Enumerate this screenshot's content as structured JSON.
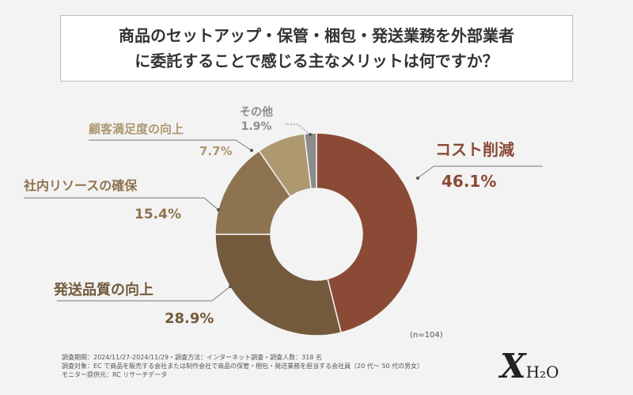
{
  "title": {
    "line1": "商品のセットアップ・保管・梱包・発送業務を外部業者",
    "line2": "に委託することで感じる主なメリットは何ですか？"
  },
  "note": "(n=104)",
  "footer": {
    "line1": "調査期間：2024/11/27-2024/11/29・調査方法：インターネット調査・調査人数：318 名",
    "line2": "調査対象：EC で商品を販売する会社または制作会社で商品の保管・梱包・発送業務を担当する会社員（20 代～ 50 代の男女）",
    "line3": "モニター提供元：RC リサーチデータ"
  },
  "logo": {
    "x": "X",
    "h2o": "H₂O"
  },
  "chart_data": {
    "type": "pie",
    "donut": true,
    "title": "商品のセットアップ・保管・梱包・発送業務を外部業者に委託することで感じる主なメリットは何ですか？",
    "categories": [
      "コスト削減",
      "発送品質の向上",
      "社内リソースの確保",
      "顧客満足度の向上",
      "その他"
    ],
    "values": [
      46.1,
      28.9,
      15.4,
      7.7,
      1.9
    ],
    "value_labels": [
      "46.1%",
      "28.9%",
      "15.4%",
      "7.7%",
      "1.9%"
    ],
    "colors": [
      "#8b4a35",
      "#735a3c",
      "#8e7350",
      "#ad9870",
      "#8c8c8c"
    ],
    "label_colors": [
      "#8b4a35",
      "#735a3c",
      "#8e7350",
      "#ad9870",
      "#8c8c8c"
    ],
    "start_angle": "top",
    "direction": "clockwise",
    "legend": "none",
    "annotation": "(n=104)"
  }
}
